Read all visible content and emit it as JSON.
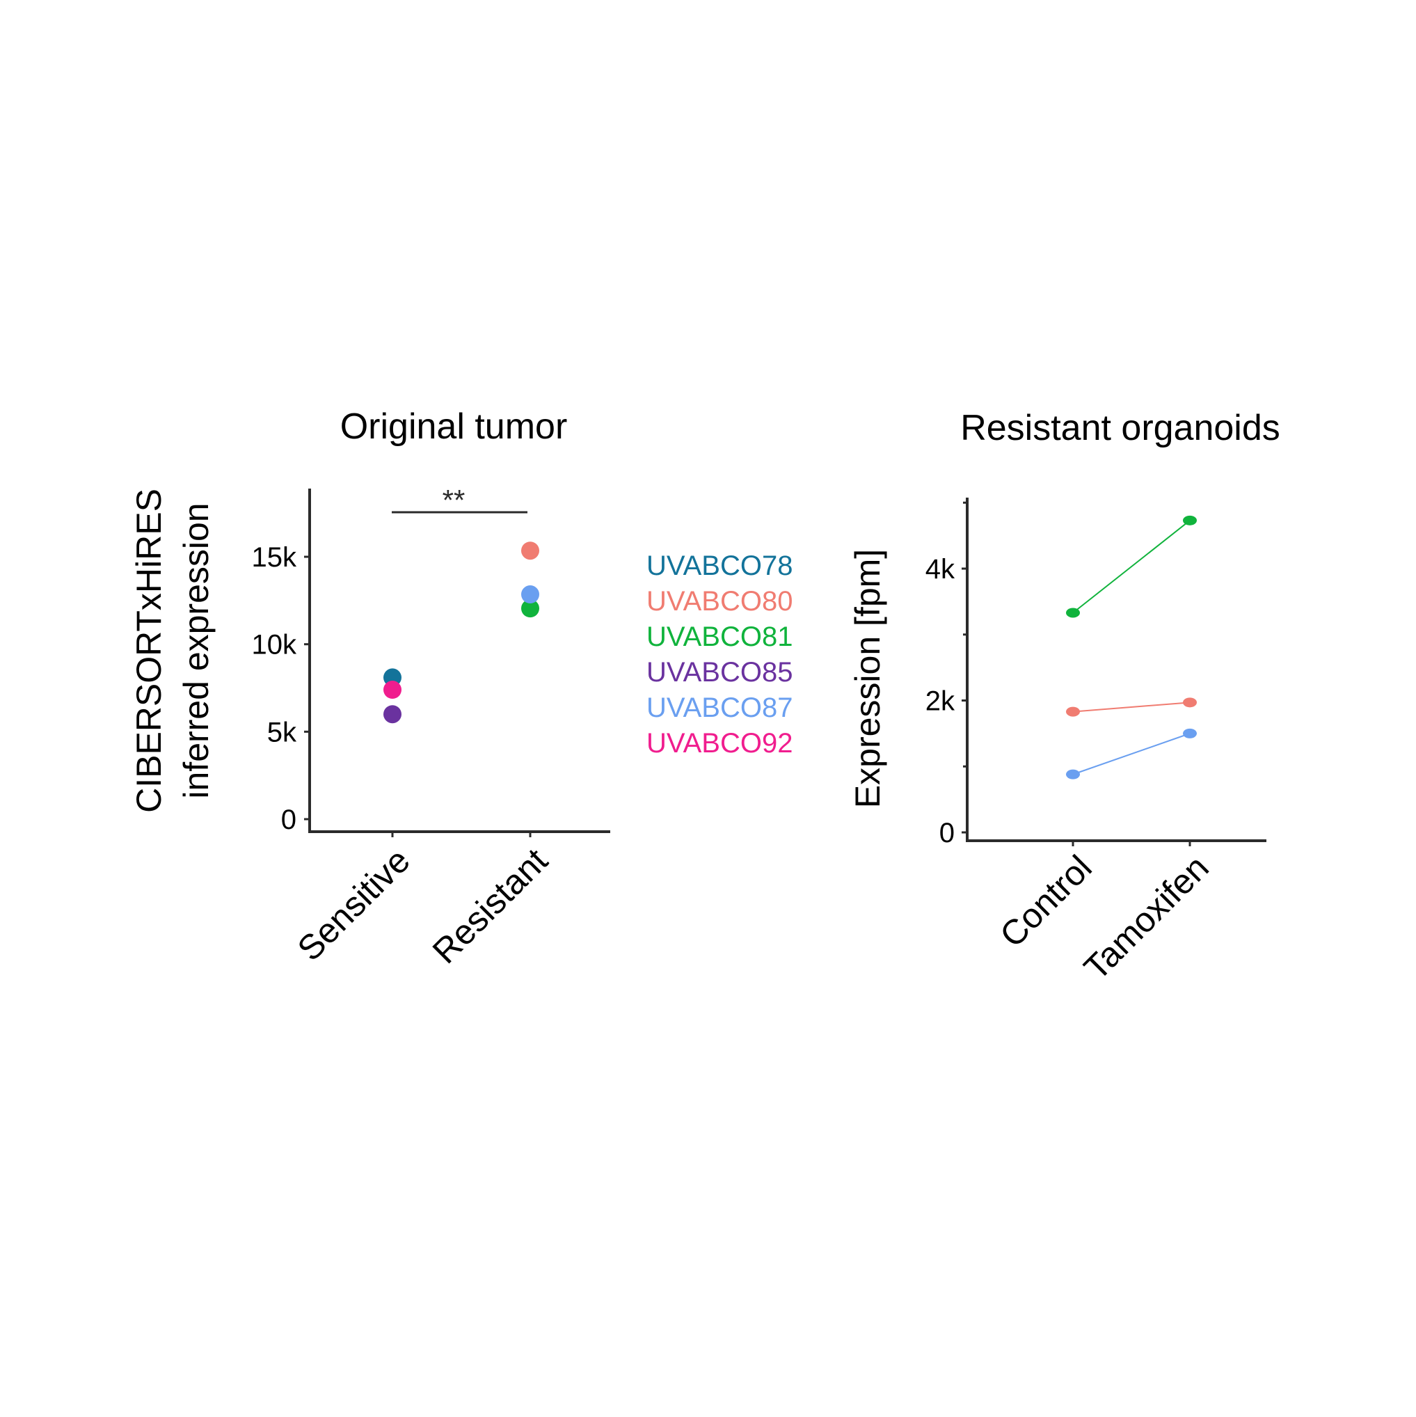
{
  "chart_data": [
    {
      "type": "scatter",
      "title": "Original tumor",
      "ylabel": [
        "CIBERSORTxHiRES",
        "inferred expression"
      ],
      "xlabel": "",
      "categories": [
        "Sensitive",
        "Resistant"
      ],
      "ylim": [
        0,
        18500
      ],
      "yticks": [
        0,
        5000,
        10000,
        15000
      ],
      "ytick_labels": [
        "0",
        "5k",
        "10k",
        "15k"
      ],
      "grid": false,
      "significance": {
        "label": "**",
        "between": [
          "Sensitive",
          "Resistant"
        ]
      },
      "series": [
        {
          "name": "UVABCO78",
          "color": "#13739a",
          "category": "Sensitive",
          "value": 8100
        },
        {
          "name": "UVABCO80",
          "color": "#f07c71",
          "category": "Resistant",
          "value": 15350
        },
        {
          "name": "UVABCO81",
          "color": "#10b33c",
          "category": "Resistant",
          "value": 12050
        },
        {
          "name": "UVABCO85",
          "color": "#6a329f",
          "category": "Sensitive",
          "value": 6000
        },
        {
          "name": "UVABCO87",
          "color": "#6a9ff0",
          "category": "Resistant",
          "value": 12850
        },
        {
          "name": "UVABCO92",
          "color": "#f01d8e",
          "category": "Sensitive",
          "value": 7400
        }
      ]
    },
    {
      "type": "line",
      "title": "Resistant organoids",
      "ylabel": "Expression [fpm]",
      "xlabel": "",
      "categories": [
        "Control",
        "Tamoxifen"
      ],
      "ylim": [
        0,
        5100
      ],
      "yticks": [
        0,
        2000,
        4000
      ],
      "ytick_labels": [
        "0",
        "2k",
        "4k"
      ],
      "minor_yticks": [
        1000,
        3000,
        5000
      ],
      "grid": false,
      "series": [
        {
          "legend_ref": "UVABCO81",
          "color": "#10b33c",
          "values": [
            3330,
            4730
          ]
        },
        {
          "legend_ref": "UVABCO80",
          "color": "#f07c71",
          "values": [
            1830,
            1970
          ]
        },
        {
          "legend_ref": "UVABCO87",
          "color": "#6a9ff0",
          "values": [
            880,
            1500
          ]
        }
      ]
    }
  ],
  "legend": {
    "placement": "between panels",
    "items": [
      {
        "label": "UVABCO78",
        "color": "#13739a"
      },
      {
        "label": "UVABCO80",
        "color": "#f07c71"
      },
      {
        "label": "UVABCO81",
        "color": "#10b33c"
      },
      {
        "label": "UVABCO85",
        "color": "#6a329f"
      },
      {
        "label": "UVABCO87",
        "color": "#6a9ff0"
      },
      {
        "label": "UVABCO92",
        "color": "#f01d8e"
      }
    ]
  }
}
